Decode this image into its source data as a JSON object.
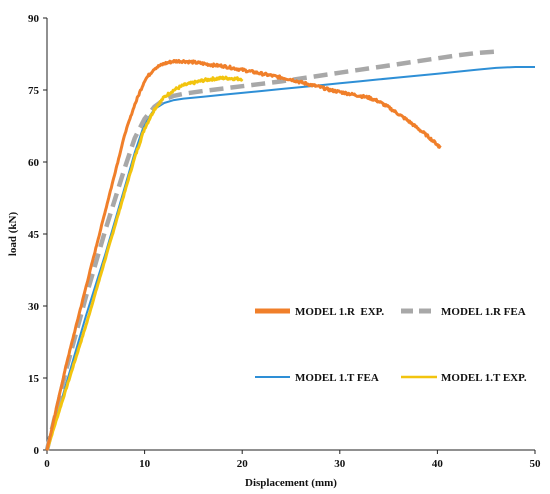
{
  "chart_data": {
    "type": "line",
    "title": "",
    "xlabel": "Displacement (mm)",
    "ylabel": "load (kN)",
    "xlim": [
      0,
      50
    ],
    "ylim": [
      0,
      90
    ],
    "x_ticks": [
      0,
      10,
      20,
      30,
      40,
      50
    ],
    "y_ticks": [
      0,
      15,
      30,
      45,
      60,
      75,
      90
    ],
    "grid": false,
    "legend": "inside lower-right",
    "series": [
      {
        "name": "MODEL 1.R  EXP.",
        "color": "#f07f2a",
        "dash": "solid",
        "noisy": true,
        "x": [
          0,
          1,
          2,
          3,
          4,
          5,
          6,
          7,
          8,
          9,
          10,
          11,
          12,
          13,
          14,
          15,
          16,
          17,
          18,
          19,
          20,
          21,
          22,
          23,
          24,
          25,
          26,
          27,
          28,
          29,
          30,
          31,
          32,
          33,
          34,
          35,
          36,
          37,
          38,
          39,
          40,
          40.3
        ],
        "y": [
          0,
          9,
          18,
          26,
          34,
          42,
          50,
          58,
          66,
          72,
          77,
          79.5,
          80.5,
          81,
          81,
          80.8,
          80.5,
          80.2,
          80,
          79.6,
          79.2,
          78.8,
          78.4,
          78,
          77.6,
          77.2,
          76.6,
          76.1,
          75.6,
          75,
          74.6,
          74.2,
          73.8,
          73.4,
          72.6,
          71.4,
          70,
          68.6,
          67,
          65.4,
          63.6,
          63
        ]
      },
      {
        "name": "MODEL 1.R FEA",
        "color": "#a8a8a8",
        "dash": "dashed",
        "noisy": false,
        "x": [
          0,
          2,
          4,
          6,
          8,
          9,
          10,
          11,
          12,
          13,
          14,
          16,
          18,
          20,
          22,
          24,
          26,
          28,
          30,
          32,
          34,
          36,
          38,
          40,
          42,
          44,
          46
        ],
        "y": [
          0,
          17,
          32,
          46,
          59,
          65,
          69,
          71.5,
          73,
          73.8,
          74.2,
          74.8,
          75.3,
          75.8,
          76.3,
          76.8,
          77.4,
          78,
          78.6,
          79.2,
          79.8,
          80.4,
          81,
          81.6,
          82.2,
          82.7,
          83
        ]
      },
      {
        "name": "MODEL 1.T FEA",
        "color": "#2e8fd6",
        "dash": "solid",
        "noisy": false,
        "x": [
          0,
          2,
          4,
          6,
          8,
          9,
          10,
          11,
          12,
          13,
          14,
          16,
          18,
          20,
          22,
          24,
          26,
          28,
          30,
          32,
          34,
          36,
          38,
          40,
          42,
          44,
          46,
          48,
          50
        ],
        "y": [
          0,
          14,
          28,
          41,
          55,
          62,
          68,
          71,
          72.3,
          72.9,
          73.2,
          73.6,
          74,
          74.4,
          74.8,
          75.2,
          75.6,
          76,
          76.4,
          76.8,
          77.2,
          77.6,
          78,
          78.4,
          78.8,
          79.2,
          79.6,
          79.8,
          79.8
        ]
      },
      {
        "name": "MODEL 1.T EXP.",
        "color": "#f2c40e",
        "dash": "solid",
        "noisy": true,
        "x": [
          0,
          1,
          2,
          3,
          4,
          5,
          6,
          7,
          8,
          9,
          10,
          11,
          12,
          13,
          14,
          15,
          16,
          17,
          18,
          19,
          20
        ],
        "y": [
          0,
          6.5,
          13,
          19.5,
          26,
          33,
          40,
          47,
          54,
          61,
          67,
          71,
          73.5,
          75,
          76,
          76.5,
          77,
          77.3,
          77.5,
          77.4,
          77.3
        ]
      }
    ]
  }
}
